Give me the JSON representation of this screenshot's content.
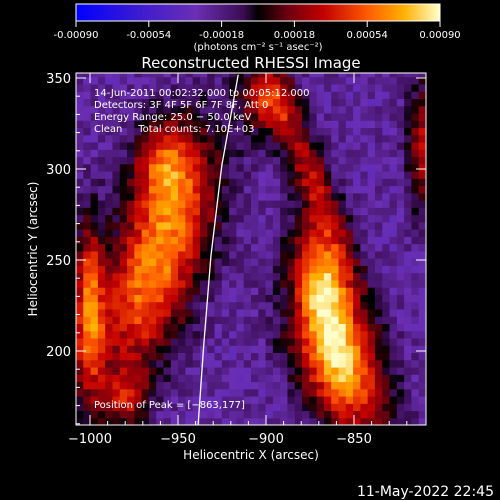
{
  "colorbar": {
    "ticks": [
      "-0.00090",
      "-0.00054",
      "-0.00018",
      "0.00018",
      "0.00054",
      "0.00090"
    ],
    "unit_label": "(photons cm⁻² s⁻¹ asec⁻²)"
  },
  "plot": {
    "title": "Reconstructed RHESSI Image",
    "xlabel": "Heliocentric X (arcsec)",
    "ylabel": "Heliocentric Y (arcsec)",
    "xticks": [
      "−1000",
      "−950",
      "−900",
      "−850"
    ],
    "yticks": [
      "350",
      "300",
      "250",
      "200"
    ]
  },
  "info_lines": [
    "14-Jun-2011 00:02:32.000 to 00:05:12.000",
    "Detectors: 3F 4F 5F 6F 7F 8F, Att 0",
    "Energy Range: 25.0 − 50.0 keV",
    "Clean     Total counts: 7.10E+03"
  ],
  "peak_label": "Position of Peak = [−863,177]",
  "timestamp": "11-May-2022 22:45",
  "chart_data": {
    "type": "heatmap",
    "title": "Reconstructed RHESSI Image",
    "xlabel": "Heliocentric X (arcsec)",
    "ylabel": "Heliocentric Y (arcsec)",
    "xlim": [
      -1008,
      -816
    ],
    "ylim": [
      157,
      351
    ],
    "colorbar_range": [
      -0.0009,
      0.0009
    ],
    "peak": [
      -863,
      177
    ],
    "limb_curve": [
      [
        -919,
        350
      ],
      [
        -928,
        300
      ],
      [
        -934,
        250
      ],
      [
        -938,
        200
      ],
      [
        -941,
        157
      ]
    ]
  },
  "colors": {
    "background": "#000000",
    "foreground": "#ffffff",
    "negative": "#0000ff",
    "positive": "#ffff00"
  }
}
